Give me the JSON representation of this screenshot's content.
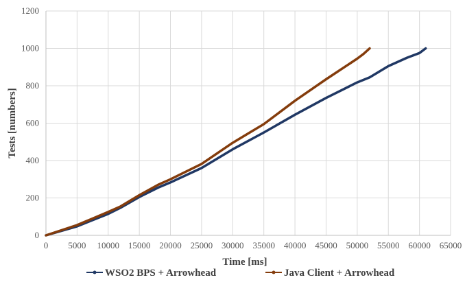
{
  "chart_data": {
    "type": "line",
    "xlabel": "Time [ms]",
    "ylabel": "Tests  [numbers]",
    "xlim": [
      0,
      65000
    ],
    "ylim": [
      0,
      1200
    ],
    "xticks": [
      0,
      5000,
      10000,
      15000,
      20000,
      25000,
      30000,
      35000,
      40000,
      45000,
      50000,
      55000,
      60000,
      65000
    ],
    "yticks": [
      0,
      200,
      400,
      600,
      800,
      1000,
      1200
    ],
    "grid": true,
    "legend_position": "bottom",
    "series": [
      {
        "name": "WSO2 BPS + Arrowhead",
        "color": "#203864",
        "x": [
          0,
          5000,
          10000,
          12000,
          15000,
          18000,
          20000,
          25000,
          30000,
          35000,
          40000,
          45000,
          50000,
          52000,
          55000,
          58000,
          60000,
          61000
        ],
        "y": [
          0,
          48,
          115,
          148,
          205,
          255,
          283,
          360,
          460,
          550,
          645,
          735,
          818,
          845,
          905,
          950,
          975,
          1000
        ]
      },
      {
        "name": "Java Client + Arrowhead",
        "color": "#843c0c",
        "x": [
          0,
          5000,
          10000,
          12000,
          15000,
          18000,
          20000,
          25000,
          30000,
          33000,
          35000,
          40000,
          45000,
          50000,
          51000,
          52000
        ],
        "y": [
          0,
          55,
          125,
          155,
          215,
          270,
          300,
          382,
          495,
          555,
          595,
          720,
          835,
          945,
          970,
          1000
        ]
      }
    ]
  }
}
